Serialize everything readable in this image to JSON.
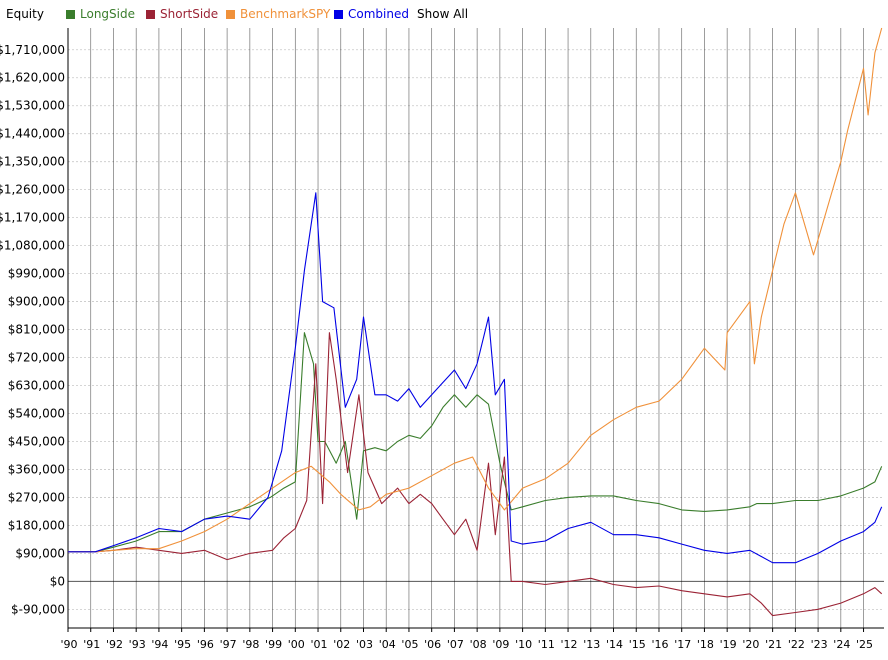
{
  "chart_data": {
    "type": "line",
    "title": "Equity",
    "show_all_label": "Show All",
    "ylim": [
      -150000,
      1780000
    ],
    "yticks": [
      -90000,
      0,
      90000,
      180000,
      270000,
      360000,
      450000,
      540000,
      630000,
      720000,
      810000,
      900000,
      990000,
      1080000,
      1170000,
      1260000,
      1350000,
      1440000,
      1530000,
      1620000,
      1710000
    ],
    "ytick_labels": [
      "$-90,000",
      "$0",
      "$90,000",
      "$180,000",
      "$270,000",
      "$360,000",
      "$450,000",
      "$540,000",
      "$630,000",
      "$720,000",
      "$810,000",
      "$900,000",
      "$990,000",
      "$1,080,000",
      "$1,170,000",
      "$1,260,000",
      "$1,350,000",
      "$1,440,000",
      "$1,530,000",
      "$1,620,000",
      "$1,710,000"
    ],
    "xlim": [
      1990,
      2025.9
    ],
    "xticks": [
      1990,
      1991,
      1992,
      1993,
      1994,
      1995,
      1996,
      1997,
      1998,
      1999,
      2000,
      2001,
      2002,
      2003,
      2004,
      2005,
      2006,
      2007,
      2008,
      2009,
      2010,
      2011,
      2012,
      2013,
      2014,
      2015,
      2016,
      2017,
      2018,
      2019,
      2020,
      2021,
      2022,
      2023,
      2024,
      2025
    ],
    "xtick_labels": [
      "'90",
      "'91",
      "'92",
      "'93",
      "'94",
      "'95",
      "'96",
      "'97",
      "'98",
      "'99",
      "'00",
      "'01",
      "'02",
      "'03",
      "'04",
      "'05",
      "'06",
      "'07",
      "'08",
      "'09",
      "'10",
      "'11",
      "'12",
      "'13",
      "'14",
      "'15",
      "'16",
      "'17",
      "'18",
      "'19",
      "'20",
      "'21",
      "'22",
      "'23",
      "'24",
      "'25"
    ],
    "grid": true,
    "legend_position": "top-left",
    "series": [
      {
        "name": "LongSide",
        "color": "#3a7d2c",
        "shaded": false,
        "x": [
          1990.0,
          1991.2,
          1992.0,
          1993.0,
          1994.0,
          1995.0,
          1996.0,
          1997.0,
          1998.0,
          1998.9,
          1999.5,
          2000.0,
          2000.4,
          2000.8,
          2001.0,
          2001.3,
          2001.8,
          2002.2,
          2002.7,
          2003.0,
          2003.5,
          2004.0,
          2004.5,
          2005.0,
          2005.5,
          2006.0,
          2006.5,
          2007.0,
          2007.5,
          2008.0,
          2008.5,
          2009.0,
          2009.5,
          2010.0,
          2011.0,
          2012.0,
          2013.0,
          2014.0,
          2015.0,
          2016.0,
          2017.0,
          2018.0,
          2019.0,
          2020.0,
          2020.3,
          2021.0,
          2022.0,
          2023.0,
          2024.0,
          2025.0,
          2025.5,
          2025.8
        ],
        "y": [
          95000,
          95000,
          110000,
          130000,
          160000,
          160000,
          200000,
          220000,
          240000,
          270000,
          300000,
          320000,
          800000,
          700000,
          450000,
          450000,
          380000,
          450000,
          200000,
          420000,
          430000,
          420000,
          450000,
          470000,
          460000,
          500000,
          560000,
          600000,
          560000,
          600000,
          570000,
          380000,
          230000,
          240000,
          260000,
          270000,
          275000,
          275000,
          260000,
          250000,
          230000,
          225000,
          230000,
          240000,
          250000,
          250000,
          260000,
          260000,
          275000,
          300000,
          320000,
          370000
        ]
      },
      {
        "name": "ShortSide",
        "color": "#9b2335",
        "shaded": false,
        "x": [
          1990.0,
          1991.2,
          1992.0,
          1993.0,
          1994.0,
          1995.0,
          1996.0,
          1997.0,
          1998.0,
          1999.0,
          1999.5,
          2000.0,
          2000.5,
          2000.9,
          2001.2,
          2001.5,
          2001.8,
          2002.3,
          2002.8,
          2003.2,
          2003.8,
          2004.5,
          2005.0,
          2005.5,
          2006.0,
          2006.5,
          2007.0,
          2007.5,
          2008.0,
          2008.5,
          2008.8,
          2009.2,
          2009.5,
          2010.0,
          2011.0,
          2012.0,
          2013.0,
          2014.0,
          2015.0,
          2016.0,
          2017.0,
          2018.0,
          2019.0,
          2020.0,
          2020.5,
          2021.0,
          2022.0,
          2023.0,
          2024.0,
          2025.0,
          2025.5,
          2025.8
        ],
        "y": [
          95000,
          95000,
          100000,
          110000,
          100000,
          90000,
          100000,
          70000,
          90000,
          100000,
          140000,
          170000,
          260000,
          700000,
          250000,
          800000,
          650000,
          350000,
          600000,
          350000,
          250000,
          300000,
          250000,
          280000,
          250000,
          200000,
          150000,
          200000,
          100000,
          380000,
          150000,
          400000,
          0,
          0,
          -10000,
          0,
          10000,
          -10000,
          -20000,
          -15000,
          -30000,
          -40000,
          -50000,
          -40000,
          -70000,
          -110000,
          -100000,
          -90000,
          -70000,
          -40000,
          -20000,
          -40000
        ]
      },
      {
        "name": "BenchmarkSPY",
        "color": "#f0913a",
        "shaded": false,
        "x": [
          1990.0,
          1991.2,
          1992.0,
          1993.0,
          1994.0,
          1995.0,
          1996.0,
          1997.0,
          1998.0,
          1999.0,
          2000.0,
          2000.7,
          2001.5,
          2002.0,
          2002.8,
          2003.3,
          2004.0,
          2005.0,
          2006.0,
          2007.0,
          2007.8,
          2008.5,
          2009.2,
          2010.0,
          2011.0,
          2012.0,
          2013.0,
          2014.0,
          2015.0,
          2016.0,
          2017.0,
          2018.0,
          2018.9,
          2019.0,
          2020.0,
          2020.2,
          2020.5,
          2021.0,
          2021.5,
          2022.0,
          2022.8,
          2023.0,
          2024.0,
          2024.3,
          2025.0,
          2025.2,
          2025.5,
          2025.8
        ],
        "y": [
          95000,
          95000,
          100000,
          105000,
          105000,
          130000,
          160000,
          200000,
          250000,
          300000,
          350000,
          370000,
          320000,
          280000,
          230000,
          240000,
          280000,
          300000,
          340000,
          380000,
          400000,
          300000,
          230000,
          300000,
          330000,
          380000,
          470000,
          520000,
          560000,
          580000,
          650000,
          750000,
          680000,
          800000,
          900000,
          700000,
          850000,
          1000000,
          1150000,
          1250000,
          1050000,
          1100000,
          1350000,
          1450000,
          1650000,
          1500000,
          1700000,
          1780000
        ]
      },
      {
        "name": "Combined",
        "color": "#0000e6",
        "shaded": false,
        "x": [
          1990.0,
          1991.2,
          1992.0,
          1993.0,
          1994.0,
          1995.0,
          1996.0,
          1997.0,
          1998.0,
          1998.8,
          1999.4,
          2000.0,
          2000.4,
          2000.9,
          2001.2,
          2001.7,
          2002.2,
          2002.7,
          2003.0,
          2003.5,
          2004.0,
          2004.5,
          2005.0,
          2005.5,
          2006.0,
          2006.5,
          2007.0,
          2007.5,
          2008.0,
          2008.5,
          2008.8,
          2009.2,
          2009.5,
          2010.0,
          2011.0,
          2012.0,
          2013.0,
          2014.0,
          2015.0,
          2016.0,
          2017.0,
          2018.0,
          2019.0,
          2020.0,
          2020.5,
          2021.0,
          2022.0,
          2023.0,
          2024.0,
          2025.0,
          2025.5,
          2025.8
        ],
        "y": [
          95000,
          95000,
          115000,
          140000,
          170000,
          160000,
          200000,
          210000,
          200000,
          270000,
          420000,
          750000,
          1000000,
          1250000,
          900000,
          880000,
          560000,
          650000,
          850000,
          600000,
          600000,
          580000,
          620000,
          560000,
          600000,
          640000,
          680000,
          620000,
          700000,
          850000,
          600000,
          650000,
          130000,
          120000,
          130000,
          170000,
          190000,
          150000,
          150000,
          140000,
          120000,
          100000,
          90000,
          100000,
          80000,
          60000,
          60000,
          90000,
          130000,
          160000,
          190000,
          240000
        ]
      }
    ]
  }
}
